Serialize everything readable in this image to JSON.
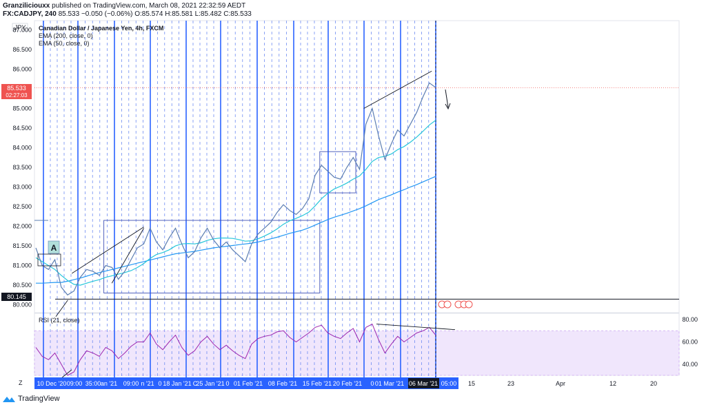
{
  "header": {
    "author": "Granzilicio​uxx",
    "published": "published on TradingView.com, March 08, 2021 22:32:59 AEDT",
    "symbol": "FX:CADJPY, 240",
    "price": "85.533",
    "change": "−0.050 (−0.06%)",
    "o": "O:85.574",
    "h": "H:85.581",
    "l": "L:85.482",
    "c": "C:85.533"
  },
  "legend": {
    "currency": "JPY",
    "title": "Canadian Dollar / Japanese Yen, 4h, FXCM",
    "ema200": "EMA (200, close, 0)",
    "ema50": "EMA (50, close, 0)",
    "rsi": "RSI (21, close)",
    "annotation_a": "A"
  },
  "badges": {
    "last_price": "85.533",
    "countdown": "02:27:03",
    "support": "80.145",
    "highlight_date": "06 Mar '21",
    "time_zone_mark": "Z"
  },
  "footer": {
    "brand": "TradingView"
  },
  "colors": {
    "price_line": "#5b7db1",
    "ema200": "#2196f3",
    "ema50": "#26c6da",
    "rsi": "#9c27b0",
    "rsi_band": "#f0e6fc",
    "cycle_solid": "#2962ff",
    "cycle_dashed": "#2962ff",
    "red_badge": "#ef5350"
  },
  "chart_data": [
    {
      "type": "line",
      "name": "price",
      "y_ticks": [
        "80.000",
        "80.500",
        "81.000",
        "81.500",
        "82.000",
        "82.500",
        "83.000",
        "83.500",
        "84.000",
        "84.500",
        "85.000",
        "85.500",
        "86.000",
        "86.500",
        "87.000"
      ],
      "ylim": [
        79.8,
        87.2
      ],
      "x_ticks": [
        "10 Dec '20",
        "09:00",
        "35:00",
        "an '21",
        "09:00",
        "n '21",
        "0",
        "18 Jan '21",
        "C",
        "25 Jan '21",
        "0",
        "01 Feb '21",
        "08 Feb '21",
        "15 Feb '21",
        "20 Feb '21",
        "0",
        "01 Mar '21",
        "06 Mar '21",
        "05:00",
        "15",
        "23",
        "Apr",
        "12",
        "20"
      ],
      "close": [
        81.45,
        81.0,
        80.9,
        81.15,
        80.45,
        80.25,
        80.35,
        80.7,
        80.9,
        80.85,
        80.75,
        81.0,
        80.95,
        80.65,
        80.85,
        81.15,
        81.45,
        81.55,
        81.95,
        81.6,
        81.4,
        81.7,
        81.95,
        81.55,
        81.2,
        81.35,
        81.7,
        81.95,
        81.65,
        81.45,
        81.6,
        81.4,
        81.25,
        81.1,
        81.55,
        81.8,
        81.95,
        82.1,
        82.35,
        82.55,
        82.4,
        82.3,
        82.45,
        82.7,
        83.3,
        83.55,
        83.4,
        83.25,
        83.2,
        83.5,
        83.75,
        83.45,
        84.6,
        85.0,
        84.3,
        83.7,
        84.1,
        84.45,
        84.3,
        84.6,
        84.9,
        85.3,
        85.65,
        85.53
      ],
      "ema200": [
        80.55,
        80.55,
        80.56,
        80.57,
        80.57,
        80.6,
        80.64,
        80.68,
        80.73,
        80.78,
        80.82,
        80.86,
        80.9,
        80.94,
        80.98,
        81.02,
        81.06,
        81.1,
        81.14,
        81.18,
        81.22,
        81.26,
        81.3,
        81.32,
        81.34,
        81.36,
        81.39,
        81.42,
        81.45,
        81.47,
        81.49,
        81.51,
        81.53,
        81.55,
        81.57,
        81.6,
        81.64,
        81.68,
        81.72,
        81.77,
        81.82,
        81.86,
        81.9,
        81.96,
        82.03,
        82.1,
        82.17,
        82.23,
        82.28,
        82.33,
        82.39,
        82.45,
        82.52,
        82.6,
        82.68,
        82.74,
        82.8,
        82.87,
        82.93,
        83.0,
        83.06,
        83.13,
        83.2,
        83.27
      ],
      "ema50": [
        81.2,
        81.1,
        81.0,
        80.9,
        80.75,
        80.62,
        80.52,
        80.5,
        80.55,
        80.6,
        80.64,
        80.7,
        80.74,
        80.78,
        80.82,
        80.87,
        80.95,
        81.05,
        81.18,
        81.28,
        81.33,
        81.4,
        81.5,
        81.55,
        81.56,
        81.55,
        81.58,
        81.64,
        81.68,
        81.7,
        81.7,
        81.69,
        81.66,
        81.62,
        81.63,
        81.68,
        81.75,
        81.83,
        81.93,
        82.05,
        82.14,
        82.2,
        82.27,
        82.36,
        82.52,
        82.7,
        82.84,
        82.95,
        83.02,
        83.1,
        83.2,
        83.28,
        83.45,
        83.65,
        83.75,
        83.78,
        83.84,
        83.95,
        84.03,
        84.14,
        84.27,
        84.42,
        84.58,
        84.7
      ],
      "trend_lines": [
        {
          "from": [
            5,
            79.7
          ],
          "to": [
            8,
            80.12
          ]
        },
        {
          "from": [
            9,
            80.8
          ],
          "to": [
            27,
            81.98
          ]
        },
        {
          "from": [
            19,
            80.55
          ],
          "to": [
            27,
            81.95
          ]
        },
        {
          "from": [
            82,
            85.0
          ],
          "to": [
            99,
            85.95
          ]
        }
      ],
      "boxes": [
        {
          "x": [
            17,
            71
          ],
          "y": [
            80.3,
            82.15
          ]
        },
        {
          "x": [
            71,
            80
          ],
          "y": [
            82.85,
            83.9
          ]
        }
      ],
      "support_level": 80.145
    },
    {
      "type": "line",
      "name": "RSI (21, close)",
      "ylim": [
        30,
        85
      ],
      "y_ticks": [
        "40.00",
        "60.00",
        "80.00"
      ],
      "band": [
        30,
        70
      ],
      "values": [
        55,
        47,
        44,
        50,
        40,
        30,
        33,
        44,
        52,
        50,
        47,
        55,
        52,
        45,
        50,
        56,
        60,
        60,
        68,
        58,
        53,
        60,
        66,
        55,
        48,
        52,
        60,
        65,
        58,
        53,
        57,
        52,
        48,
        45,
        58,
        63,
        65,
        66,
        69,
        70,
        64,
        60,
        64,
        68,
        73,
        75,
        68,
        65,
        63,
        68,
        72,
        60,
        73,
        76,
        62,
        50,
        58,
        65,
        60,
        64,
        68,
        70,
        73,
        66
      ]
    }
  ]
}
